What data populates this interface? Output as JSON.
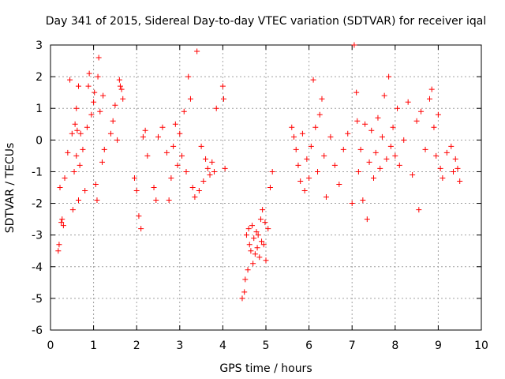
{
  "chart_data": {
    "type": "scatter",
    "title": "Day 341 of 2015, Sidereal Day-to-day VTEC variation (SDTVAR) for receiver iqal",
    "xlabel": "GPS time / hours",
    "ylabel": "SDTVAR / TECUs",
    "xlim": [
      0,
      10
    ],
    "ylim": [
      -6,
      3
    ],
    "xticks": [
      "0",
      "1",
      "2",
      "3",
      "4",
      "5",
      "6",
      "7",
      "8",
      "9",
      "10"
    ],
    "yticks": [
      "3",
      "2",
      "1",
      "0",
      "-1",
      "-2",
      "-3",
      "-4",
      "-5",
      "-6"
    ],
    "grid": true,
    "marker": "+",
    "color": "#ff0000",
    "series": [
      {
        "name": "SDTVAR",
        "x": [
          0.18,
          0.2,
          0.22,
          0.25,
          0.27,
          0.3,
          0.33,
          0.4,
          0.45,
          0.5,
          0.52,
          0.55,
          0.57,
          0.6,
          0.6,
          0.62,
          0.65,
          0.65,
          0.68,
          0.7,
          0.75,
          0.8,
          0.85,
          0.88,
          0.9,
          0.95,
          1.0,
          1.02,
          1.05,
          1.08,
          1.1,
          1.12,
          1.15,
          1.2,
          1.22,
          1.25,
          1.4,
          1.45,
          1.5,
          1.55,
          1.6,
          1.62,
          1.65,
          1.68,
          1.95,
          2.0,
          2.05,
          2.1,
          2.15,
          2.2,
          2.25,
          2.4,
          2.45,
          2.5,
          2.6,
          2.7,
          2.75,
          2.8,
          2.85,
          2.9,
          2.95,
          3.0,
          3.05,
          3.1,
          3.15,
          3.2,
          3.25,
          3.3,
          3.35,
          3.4,
          3.45,
          3.5,
          3.55,
          3.6,
          3.65,
          3.7,
          3.75,
          3.8,
          3.85,
          4.0,
          4.02,
          4.05,
          4.45,
          4.5,
          4.52,
          4.55,
          4.58,
          4.6,
          4.62,
          4.65,
          4.68,
          4.7,
          4.72,
          4.75,
          4.78,
          4.8,
          4.82,
          4.85,
          4.88,
          4.9,
          4.92,
          4.95,
          4.98,
          5.0,
          5.05,
          5.1,
          5.15,
          5.6,
          5.65,
          5.7,
          5.75,
          5.8,
          5.85,
          5.9,
          5.95,
          6.0,
          6.05,
          6.1,
          6.15,
          6.2,
          6.25,
          6.3,
          6.35,
          6.4,
          6.5,
          6.6,
          6.7,
          6.8,
          6.9,
          7.0,
          7.05,
          7.1,
          7.12,
          7.15,
          7.2,
          7.25,
          7.3,
          7.35,
          7.4,
          7.45,
          7.5,
          7.55,
          7.6,
          7.65,
          7.7,
          7.75,
          7.8,
          7.85,
          7.9,
          7.95,
          8.0,
          8.05,
          8.1,
          8.2,
          8.3,
          8.4,
          8.5,
          8.55,
          8.6,
          8.7,
          8.8,
          8.85,
          8.9,
          8.95,
          9.0,
          9.05,
          9.1,
          9.2,
          9.3,
          9.35,
          9.4,
          9.45,
          9.5
        ],
        "y": [
          -3.5,
          -3.3,
          -1.5,
          -2.6,
          -2.5,
          -2.7,
          -1.2,
          -0.4,
          1.9,
          0.2,
          -2.2,
          -1.0,
          0.5,
          -0.5,
          1.0,
          0.3,
          1.7,
          -1.9,
          -0.8,
          0.2,
          -0.3,
          -1.6,
          0.4,
          1.7,
          2.1,
          0.8,
          1.2,
          1.5,
          -1.4,
          -1.9,
          2.0,
          2.6,
          0.9,
          -0.7,
          1.4,
          -0.3,
          0.2,
          0.6,
          1.1,
          0.0,
          1.9,
          1.7,
          1.6,
          1.3,
          -1.2,
          -1.6,
          -2.4,
          -2.8,
          0.1,
          0.3,
          -0.5,
          -1.5,
          -1.9,
          0.1,
          0.4,
          -0.4,
          -1.9,
          -1.2,
          -0.2,
          0.5,
          -0.8,
          0.2,
          -0.5,
          0.9,
          -1.0,
          2.0,
          1.3,
          -1.5,
          -1.8,
          2.8,
          -1.6,
          -0.2,
          -1.3,
          -0.6,
          -0.9,
          -1.1,
          -0.7,
          -1.0,
          1.0,
          1.7,
          1.3,
          -0.9,
          -5.0,
          -4.8,
          -4.4,
          -3.0,
          -4.1,
          -2.8,
          -3.3,
          -3.5,
          -2.7,
          -3.9,
          -3.1,
          -3.6,
          -2.9,
          -3.4,
          -3.0,
          -3.7,
          -2.5,
          -3.2,
          -2.2,
          -3.3,
          -2.6,
          -3.8,
          -2.8,
          -1.5,
          -1.0,
          0.4,
          0.1,
          -0.3,
          -0.8,
          -1.3,
          0.2,
          -1.6,
          -0.6,
          -1.2,
          -0.2,
          1.9,
          0.4,
          -1.0,
          0.8,
          1.3,
          -0.5,
          -1.8,
          0.1,
          -0.8,
          -1.4,
          -0.3,
          0.2,
          -2.0,
          3.0,
          1.5,
          0.6,
          -1.0,
          -0.3,
          -1.9,
          0.5,
          -2.5,
          -0.7,
          0.3,
          -1.2,
          -0.4,
          0.7,
          -0.9,
          0.1,
          1.4,
          -0.6,
          2.0,
          -0.2,
          0.4,
          -0.5,
          1.0,
          -0.8,
          0.0,
          1.2,
          -1.1,
          0.6,
          -2.2,
          0.9,
          -0.3,
          1.3,
          1.6,
          0.4,
          -0.5,
          0.8,
          -0.9,
          -1.2,
          -0.4,
          -0.2,
          -1.0,
          -0.6,
          -0.9,
          -1.3
        ]
      }
    ]
  }
}
